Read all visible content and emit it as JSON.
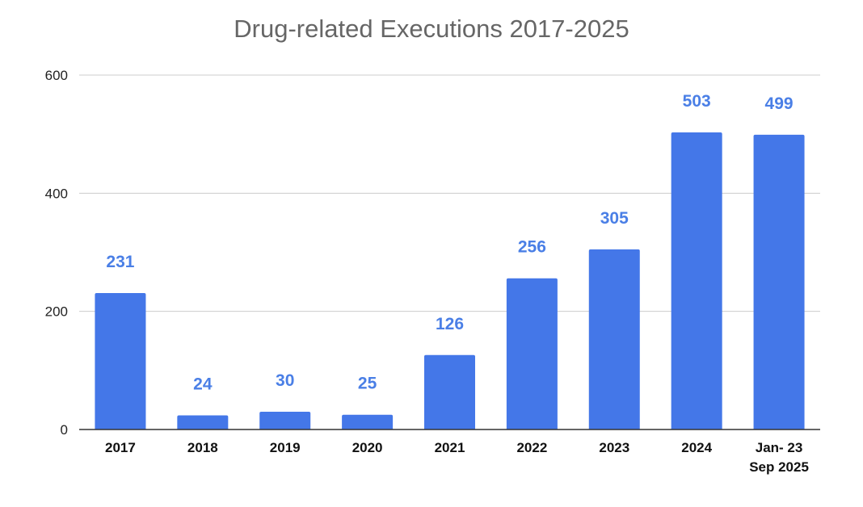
{
  "chart_data": {
    "type": "bar",
    "title": "Drug-related Executions 2017-2025",
    "xlabel": "",
    "ylabel": "",
    "categories": [
      "2017",
      "2018",
      "2019",
      "2020",
      "2021",
      "2022",
      "2023",
      "2024",
      "Jan- 23 Sep 2025"
    ],
    "category_lines": [
      [
        "2017"
      ],
      [
        "2018"
      ],
      [
        "2019"
      ],
      [
        "2020"
      ],
      [
        "2021"
      ],
      [
        "2022"
      ],
      [
        "2023"
      ],
      [
        "2024"
      ],
      [
        "Jan- 23",
        "Sep 2025"
      ]
    ],
    "values": [
      231,
      24,
      30,
      25,
      126,
      256,
      305,
      503,
      499
    ],
    "data_labels": [
      "231",
      "24",
      "30",
      "25",
      "126",
      "256",
      "305",
      "503",
      "499"
    ],
    "ylim": [
      0,
      600
    ],
    "yticks": [
      0,
      200,
      400,
      600
    ],
    "ytick_labels": [
      "0",
      "200",
      "400",
      "600"
    ],
    "grid": true,
    "legend": "none",
    "colors": {
      "bar": "#4477e8",
      "data_label": "#4a7fe6",
      "gridline": "#cccccc",
      "axis": "#333333",
      "title": "#666666"
    }
  }
}
